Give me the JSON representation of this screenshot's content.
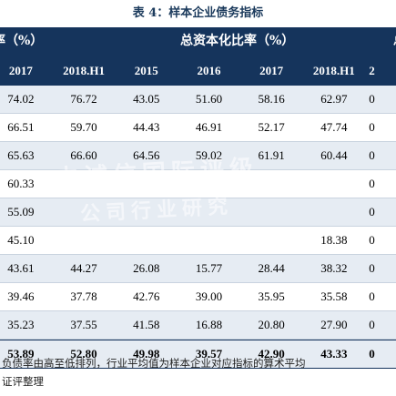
{
  "title": "表 4：样本企业债务指标",
  "header": {
    "group_left": "率（%）",
    "group_mid": "总资本化比率（%）",
    "group_right": "总"
  },
  "columns": [
    "2017",
    "2018.H1",
    "2015",
    "2016",
    "2017",
    "2018.H1",
    "2"
  ],
  "rows": [
    [
      "74.02",
      "76.72",
      "43.05",
      "51.60",
      "58.16",
      "62.97",
      "0"
    ],
    [
      "66.51",
      "59.70",
      "44.43",
      "46.91",
      "52.17",
      "47.74",
      "0"
    ],
    [
      "65.63",
      "66.60",
      "64.56",
      "59.02",
      "61.91",
      "60.44",
      "0"
    ],
    [
      "60.33",
      "",
      "",
      "",
      "",
      "",
      "0"
    ],
    [
      "55.09",
      "",
      "",
      "",
      "",
      "",
      "0"
    ],
    [
      "45.10",
      "",
      "",
      "",
      "",
      "18.38",
      "0"
    ],
    [
      "43.61",
      "44.27",
      "26.08",
      "15.77",
      "28.44",
      "38.32",
      "0"
    ],
    [
      "39.46",
      "37.78",
      "42.76",
      "39.00",
      "35.95",
      "35.58",
      "0"
    ],
    [
      "35.23",
      "37.55",
      "41.58",
      "16.88",
      "20.80",
      "27.90",
      "0"
    ]
  ],
  "average_row": [
    "53.89",
    "52.80",
    "49.98",
    "39.57",
    "42.90",
    "43.33",
    "0"
  ],
  "notes": [
    "负债率由高至低排列，行业平均值为样本企业对应指标的算术平均",
    "证评整理"
  ],
  "watermark": [
    "中诚信国际评级",
    "公司行业研究"
  ]
}
